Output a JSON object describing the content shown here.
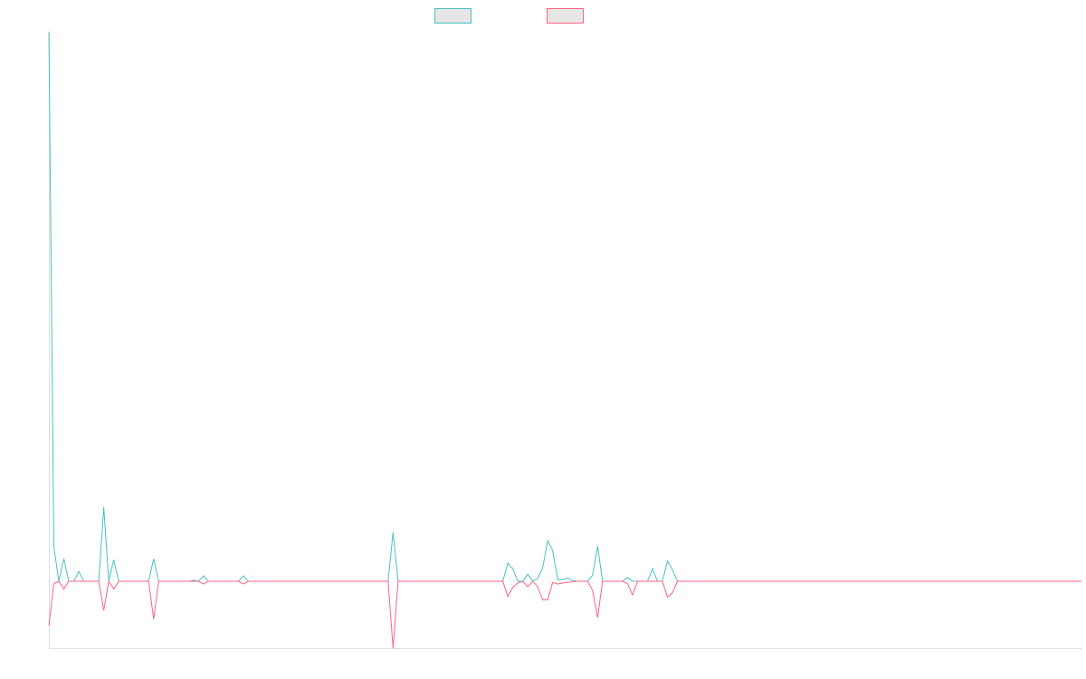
{
  "chart_data": {
    "type": "line",
    "title": "",
    "xlabel": "",
    "ylabel": "",
    "grid": false,
    "legend_position": "top-center",
    "x_axis_visible": true,
    "y_axis_visible": true,
    "colors": {
      "legend_fill": "#e6e6e6",
      "axis": "#dddddd"
    },
    "series": [
      {
        "color": "#4bc0c0",
        "values": [
          100,
          6.3,
          0,
          4.1,
          0,
          0,
          1.8,
          0,
          0,
          0,
          0,
          13.5,
          0,
          3.9,
          0,
          0,
          0,
          0,
          0,
          0,
          0,
          4.1,
          0,
          0,
          0,
          0,
          0,
          0,
          0,
          0.2,
          0,
          1,
          0,
          0,
          0,
          0,
          0,
          0,
          0,
          1,
          0,
          0,
          0,
          0,
          0,
          0,
          0,
          0,
          0,
          0,
          0,
          0,
          0,
          0,
          0,
          0,
          0,
          0,
          0,
          0,
          0,
          0,
          0,
          0,
          0,
          0,
          0,
          0,
          0,
          8.9,
          0,
          0,
          0,
          0,
          0,
          0,
          0,
          0,
          0,
          0,
          0,
          0,
          0,
          0,
          0,
          0,
          0,
          0,
          0,
          0,
          0,
          0,
          3.3,
          2.3,
          0,
          0,
          1.3,
          0,
          0.5,
          2.5,
          7.4,
          5.6,
          0.3,
          0.3,
          0.6,
          0.1,
          0,
          0,
          0,
          1.1,
          6.4,
          0,
          0,
          0,
          0,
          0,
          0.7,
          0,
          0,
          0,
          0,
          2.3,
          0,
          0,
          3.7,
          2.1,
          0,
          0,
          0,
          0,
          0,
          0,
          0,
          0,
          0,
          0,
          0,
          0,
          0,
          0,
          0,
          0,
          0,
          0,
          0,
          0,
          0,
          0,
          0,
          0,
          0,
          0,
          0,
          0,
          0,
          0,
          0,
          0,
          0,
          0,
          0,
          0,
          0,
          0,
          0,
          0,
          0,
          0,
          0,
          0,
          0,
          0,
          0,
          0,
          0,
          0,
          0,
          0,
          0,
          0,
          0,
          0,
          0,
          0,
          0,
          0,
          0,
          0,
          0,
          0,
          0,
          0,
          0,
          0,
          0,
          0,
          0,
          0,
          0,
          0,
          0,
          0,
          0,
          0,
          0,
          0,
          0,
          0
        ]
      },
      {
        "color": "#ff6384",
        "values": [
          -8.1,
          -0.4,
          0,
          -1.4,
          0,
          0,
          0,
          0,
          0,
          0,
          0,
          -5.3,
          0,
          -1.4,
          0,
          0,
          0,
          0,
          0,
          0,
          0,
          -6.9,
          0,
          0,
          0,
          0,
          0,
          0,
          0,
          0,
          0,
          -0.5,
          0,
          0,
          0,
          0,
          0,
          0,
          0,
          -0.5,
          0,
          0,
          0,
          0,
          0,
          0,
          0,
          0,
          0,
          0,
          0,
          0,
          0,
          0,
          0,
          0,
          0,
          0,
          0,
          0,
          0,
          0,
          0,
          0,
          0,
          0,
          0,
          0,
          0,
          -12.2,
          0,
          0,
          0,
          0,
          0,
          0,
          0,
          0,
          0,
          0,
          0,
          0,
          0,
          0,
          0,
          0,
          0,
          0,
          0,
          0,
          0,
          0,
          -2.8,
          -1.1,
          -0.3,
          0,
          -1,
          0,
          -1,
          -3.4,
          -3.4,
          -0.2,
          -0.5,
          -0.3,
          -0.2,
          -0.1,
          0,
          0,
          0,
          -1.7,
          -6.6,
          0,
          0,
          0,
          0,
          0,
          -0.4,
          -2.5,
          0,
          0,
          0,
          0,
          0,
          0,
          -2.9,
          -2.1,
          0,
          0,
          0,
          0,
          0,
          0,
          0,
          0,
          0,
          0,
          0,
          0,
          0,
          0,
          0,
          0,
          0,
          0,
          0,
          0,
          0,
          0,
          0,
          0,
          0,
          0,
          0,
          0,
          0,
          0,
          0,
          0,
          0,
          0,
          0,
          0,
          0,
          0,
          0,
          0,
          0,
          0,
          0,
          0,
          0,
          0,
          0,
          0,
          0,
          0,
          0,
          0,
          0,
          0,
          0,
          0,
          0,
          0,
          0,
          0,
          0,
          0,
          0,
          0,
          0,
          0,
          0,
          0,
          0,
          0,
          0,
          0,
          0,
          0,
          0,
          0,
          0,
          0,
          0,
          0,
          0,
          0
        ]
      }
    ],
    "ylim": [
      -12.2,
      100
    ]
  }
}
